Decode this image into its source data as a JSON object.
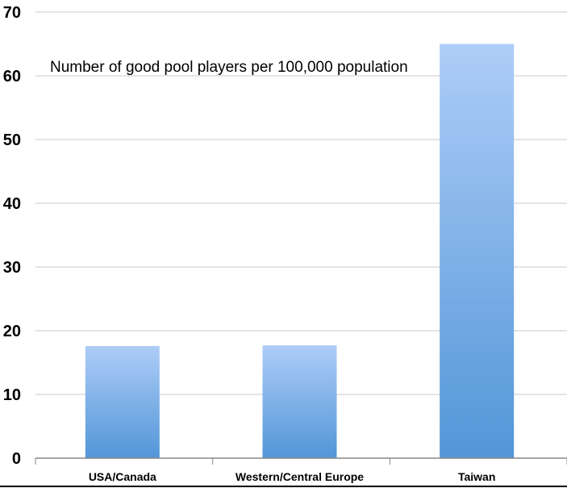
{
  "chart_data": {
    "type": "bar",
    "title": "",
    "xlabel": "",
    "ylabel": "",
    "categories": [
      "USA/Canada",
      "Western/Central Europe",
      "Taiwan"
    ],
    "values": [
      17.6,
      17.7,
      65
    ],
    "ylim": [
      0,
      70
    ],
    "yticks": [
      "0",
      "10",
      "20",
      "30",
      "40",
      "50",
      "60",
      "70"
    ],
    "grid": true,
    "annotation": "Number of good pool players per 100,000 population",
    "colors": {
      "bar_top": "#aecdf7",
      "bar_bottom": "#5296d8",
      "grid": "#c8c8c8",
      "axis": "#888888"
    }
  }
}
